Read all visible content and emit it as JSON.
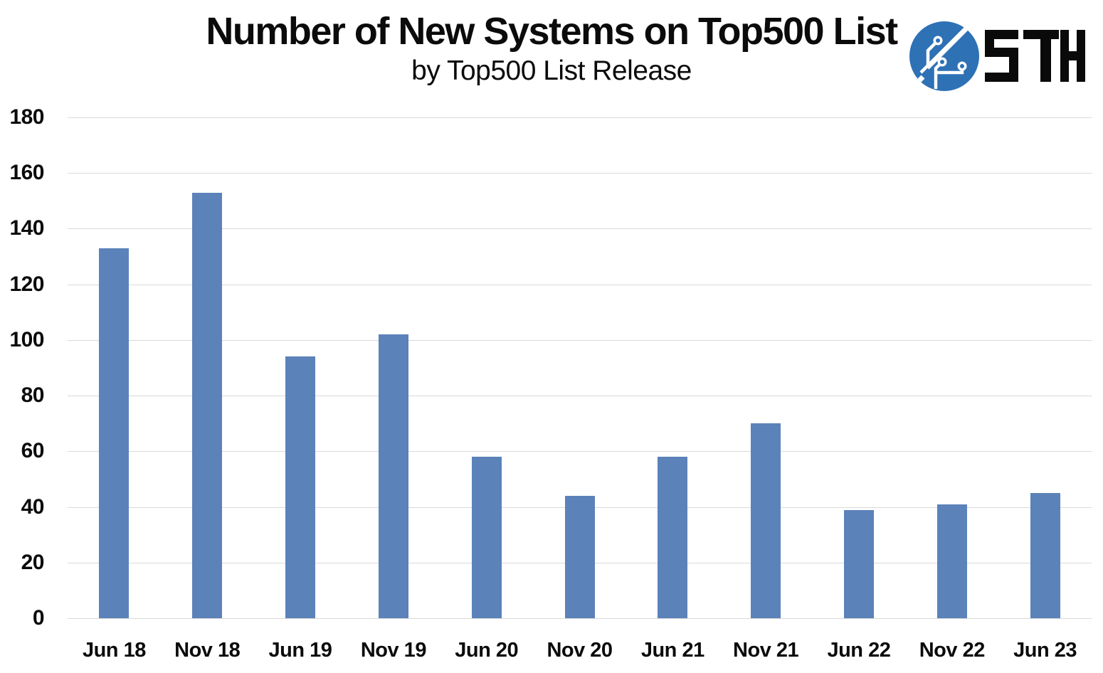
{
  "header": {
    "title": "Number of New Systems on Top500 List",
    "subtitle": "by Top500 List Release",
    "logo_text": "STH"
  },
  "colors": {
    "bar": "#5B82B9",
    "gridline": "#D9D9D9",
    "text": "#0B0B0B",
    "logo_blue": "#2E71B5",
    "logo_letters": "#0A0A0A",
    "background": "#FFFFFF"
  },
  "chart_data": {
    "type": "bar",
    "title": "Number of New Systems on Top500 List",
    "subtitle": "by Top500 List Release",
    "categories": [
      "Jun 18",
      "Nov 18",
      "Jun 19",
      "Nov 19",
      "Jun 20",
      "Nov 20",
      "Jun 21",
      "Nov 21",
      "Jun 22",
      "Nov 22",
      "Jun 23"
    ],
    "values": [
      133,
      153,
      94,
      102,
      58,
      44,
      58,
      70,
      39,
      41,
      45
    ],
    "xlabel": "",
    "ylabel": "",
    "ylim": [
      0,
      180
    ],
    "ytick_step": 20,
    "yticks": [
      0,
      20,
      40,
      60,
      80,
      100,
      120,
      140,
      160,
      180
    ],
    "grid": "horizontal",
    "legend": "none",
    "bar_color": "#5B82B9"
  }
}
